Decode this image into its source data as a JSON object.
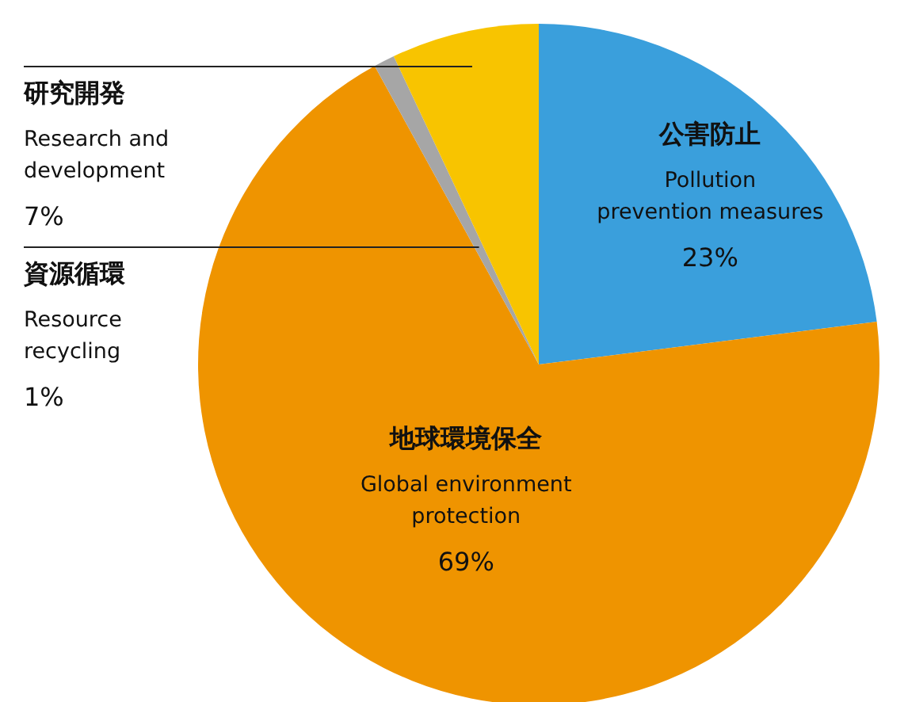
{
  "chart_data": {
    "type": "pie",
    "categories": [
      "公害防止\nPollution\nprevention measures",
      "地球環境保全\nGlobal environment\nprotection",
      "資源循環\nResource\nrecycling",
      "研究開発\nResearch and\ndevelopment"
    ],
    "values": [
      23,
      69,
      1,
      7
    ],
    "value_labels": [
      "23%",
      "69%",
      "1%",
      "7%"
    ],
    "colors": [
      "#3a9fdc",
      "#ef9400",
      "#a6a6a6",
      "#f8c400"
    ]
  }
}
